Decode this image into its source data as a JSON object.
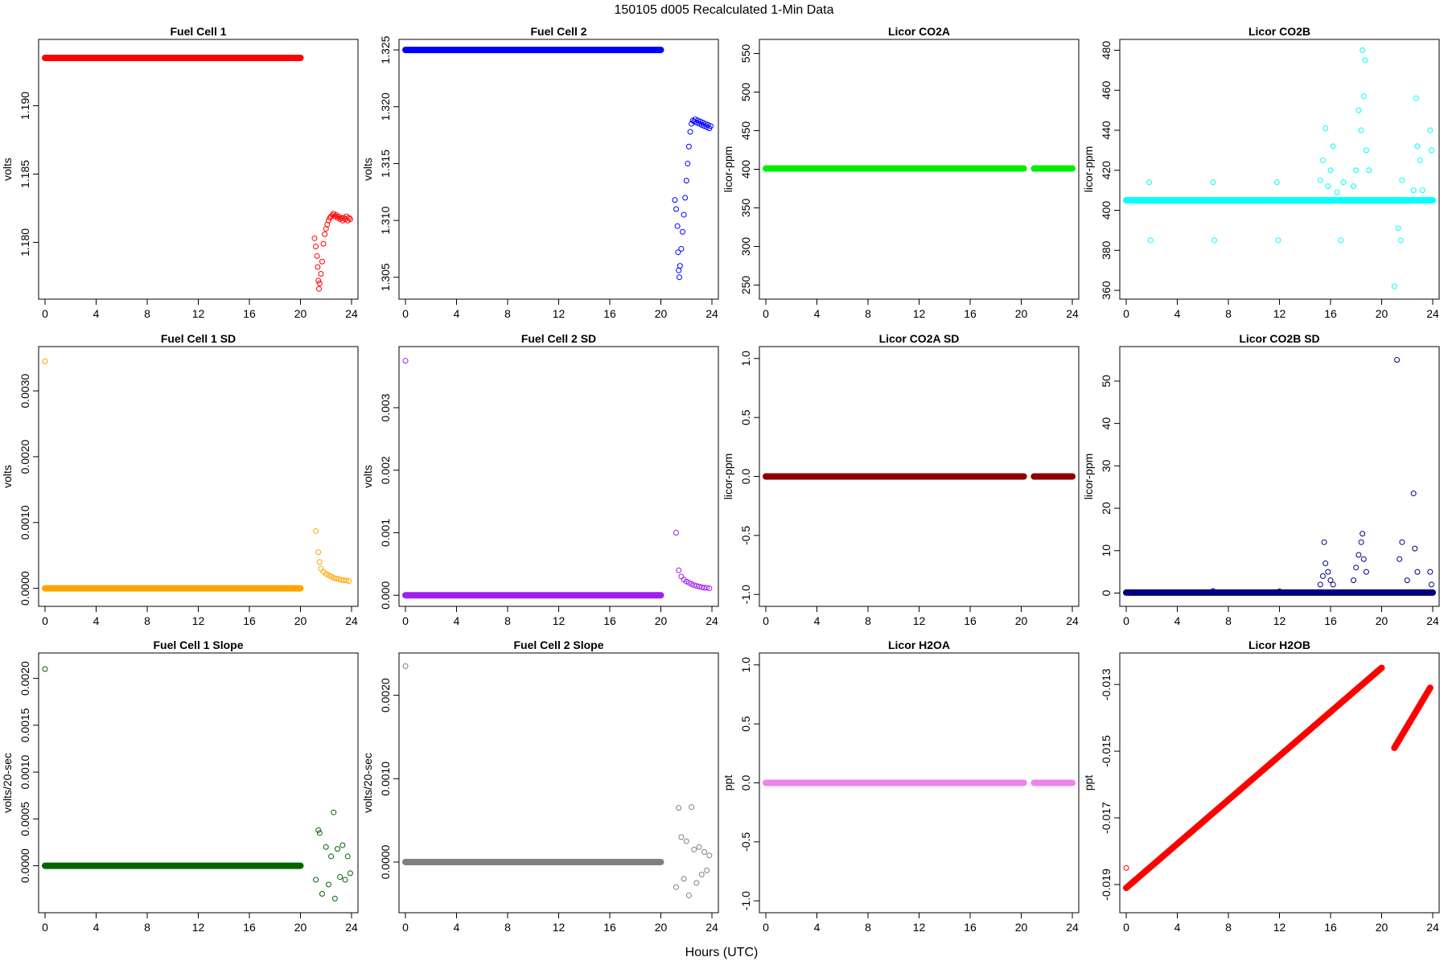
{
  "figure": {
    "title": "150105   d005   Recalculated 1-Min Data",
    "xlabel": "Hours (UTC)"
  },
  "chart_data": [
    {
      "type": "scatter",
      "title": "Fuel Cell 1",
      "ylabel": "volts",
      "color": "#ff0000",
      "xlim": [
        0,
        24
      ],
      "xticks": [
        0,
        4,
        8,
        12,
        16,
        20,
        24
      ],
      "ylim": [
        1.1762,
        1.1945
      ],
      "yticks": [
        1.18,
        1.185,
        1.19
      ],
      "ytick_labels": [
        "1.180",
        "1.185",
        "1.190"
      ],
      "segments": [
        {
          "x0": 0,
          "x1": 20,
          "y0": 1.1935,
          "y1": 1.1935
        }
      ],
      "points": [
        [
          21.1,
          1.1803
        ],
        [
          21.2,
          1.1797
        ],
        [
          21.3,
          1.179
        ],
        [
          21.35,
          1.1782
        ],
        [
          21.4,
          1.1772
        ],
        [
          21.45,
          1.1766
        ],
        [
          21.5,
          1.177
        ],
        [
          21.6,
          1.1777
        ],
        [
          21.7,
          1.1786
        ],
        [
          21.8,
          1.1799
        ],
        [
          21.9,
          1.1806
        ],
        [
          22.0,
          1.181
        ],
        [
          22.1,
          1.1813
        ],
        [
          22.2,
          1.1816
        ],
        [
          22.3,
          1.1818
        ],
        [
          22.4,
          1.1819
        ],
        [
          22.5,
          1.182
        ],
        [
          22.6,
          1.1821
        ],
        [
          22.7,
          1.1819
        ],
        [
          22.8,
          1.182
        ],
        [
          22.9,
          1.1818
        ],
        [
          23.0,
          1.1819
        ],
        [
          23.1,
          1.1817
        ],
        [
          23.2,
          1.1818
        ],
        [
          23.3,
          1.1816
        ],
        [
          23.4,
          1.1818
        ],
        [
          23.5,
          1.1817
        ],
        [
          23.6,
          1.1819
        ],
        [
          23.7,
          1.1816
        ],
        [
          23.8,
          1.1818
        ],
        [
          23.9,
          1.1817
        ]
      ]
    },
    {
      "type": "scatter",
      "title": "Fuel Cell 2",
      "ylabel": "volts",
      "color": "#0000ff",
      "xlim": [
        0,
        24
      ],
      "xticks": [
        0,
        4,
        8,
        12,
        16,
        20,
        24
      ],
      "ylim": [
        1.3035,
        1.3255
      ],
      "yticks": [
        1.305,
        1.31,
        1.315,
        1.32,
        1.325
      ],
      "ytick_labels": [
        "1.305",
        "1.310",
        "1.315",
        "1.320",
        "1.325"
      ],
      "segments": [
        {
          "x0": 0,
          "x1": 20,
          "y0": 1.325,
          "y1": 1.325
        }
      ],
      "points": [
        [
          21.1,
          1.3118
        ],
        [
          21.2,
          1.311
        ],
        [
          21.3,
          1.3095
        ],
        [
          21.35,
          1.3072
        ],
        [
          21.4,
          1.3056
        ],
        [
          21.45,
          1.305
        ],
        [
          21.5,
          1.306
        ],
        [
          21.6,
          1.3075
        ],
        [
          21.7,
          1.309
        ],
        [
          21.8,
          1.3105
        ],
        [
          21.9,
          1.312
        ],
        [
          22.0,
          1.3135
        ],
        [
          22.1,
          1.315
        ],
        [
          22.2,
          1.3165
        ],
        [
          22.3,
          1.3178
        ],
        [
          22.4,
          1.3185
        ],
        [
          22.5,
          1.3188
        ],
        [
          22.6,
          1.3187
        ],
        [
          22.7,
          1.3189
        ],
        [
          22.8,
          1.3186
        ],
        [
          22.9,
          1.3188
        ],
        [
          23.0,
          1.3185
        ],
        [
          23.1,
          1.3187
        ],
        [
          23.2,
          1.3184
        ],
        [
          23.3,
          1.3186
        ],
        [
          23.4,
          1.3183
        ],
        [
          23.5,
          1.3185
        ],
        [
          23.6,
          1.3182
        ],
        [
          23.7,
          1.3184
        ],
        [
          23.8,
          1.3181
        ],
        [
          23.9,
          1.3183
        ]
      ]
    },
    {
      "type": "scatter",
      "title": "Licor CO2A",
      "ylabel": "licor-ppm",
      "color": "#00ee00",
      "xlim": [
        0,
        24
      ],
      "xticks": [
        0,
        4,
        8,
        12,
        16,
        20,
        24
      ],
      "ylim": [
        238,
        562
      ],
      "yticks": [
        250,
        300,
        350,
        400,
        450,
        500,
        550
      ],
      "ytick_labels": [
        "250",
        "300",
        "350",
        "400",
        "450",
        "500",
        "550"
      ],
      "segments": [
        {
          "x0": 0,
          "x1": 20.2,
          "y0": 401,
          "y1": 401
        },
        {
          "x0": 21.0,
          "x1": 24,
          "y0": 401,
          "y1": 401
        }
      ],
      "points": []
    },
    {
      "type": "scatter",
      "title": "Licor CO2B",
      "ylabel": "licor-ppm",
      "color": "#00ffff",
      "xlim": [
        0,
        24
      ],
      "xticks": [
        0,
        4,
        8,
        12,
        16,
        20,
        24
      ],
      "ylim": [
        358,
        483
      ],
      "yticks": [
        360,
        380,
        400,
        420,
        440,
        460,
        480
      ],
      "ytick_labels": [
        "360",
        "380",
        "400",
        "420",
        "440",
        "460",
        "480"
      ],
      "segments": [
        {
          "x0": 0,
          "x1": 24,
          "y0": 405,
          "y1": 405
        }
      ],
      "points": [
        [
          1.8,
          414
        ],
        [
          1.9,
          385
        ],
        [
          6.8,
          414
        ],
        [
          6.9,
          385
        ],
        [
          11.8,
          414
        ],
        [
          11.9,
          385
        ],
        [
          15.2,
          415
        ],
        [
          15.4,
          425
        ],
        [
          15.6,
          441
        ],
        [
          15.8,
          412
        ],
        [
          16.0,
          420
        ],
        [
          16.2,
          432
        ],
        [
          16.5,
          409
        ],
        [
          16.8,
          385
        ],
        [
          17.0,
          414
        ],
        [
          17.8,
          412
        ],
        [
          18.0,
          420
        ],
        [
          18.2,
          450
        ],
        [
          18.4,
          440
        ],
        [
          18.5,
          480
        ],
        [
          18.6,
          457
        ],
        [
          18.7,
          475
        ],
        [
          18.8,
          430
        ],
        [
          19.0,
          420
        ],
        [
          21.0,
          362
        ],
        [
          21.3,
          391
        ],
        [
          21.5,
          385
        ],
        [
          21.6,
          415
        ],
        [
          22.5,
          410
        ],
        [
          22.7,
          456
        ],
        [
          22.8,
          432
        ],
        [
          23.0,
          425
        ],
        [
          23.2,
          410
        ],
        [
          23.8,
          440
        ],
        [
          23.9,
          430
        ]
      ]
    },
    {
      "type": "scatter",
      "title": "Fuel Cell 1 SD",
      "ylabel": "volts",
      "color": "#ffa500",
      "xlim": [
        0,
        24
      ],
      "xticks": [
        0,
        4,
        8,
        12,
        16,
        20,
        24
      ],
      "ylim": [
        -0.0002,
        0.0036
      ],
      "yticks": [
        0.0,
        0.001,
        0.002,
        0.003
      ],
      "ytick_labels": [
        "0.0000",
        "0.0010",
        "0.0020",
        "0.0030"
      ],
      "segments": [
        {
          "x0": 0,
          "x1": 20,
          "y0": 0,
          "y1": 0
        }
      ],
      "points": [
        [
          0,
          0.00345
        ],
        [
          21.2,
          0.00087
        ],
        [
          21.4,
          0.00055
        ],
        [
          21.5,
          0.0004
        ],
        [
          21.6,
          0.0003
        ],
        [
          21.8,
          0.00025
        ],
        [
          22.0,
          0.00022
        ],
        [
          22.2,
          0.0002
        ],
        [
          22.4,
          0.00018
        ],
        [
          22.6,
          0.00016
        ],
        [
          22.8,
          0.00015
        ],
        [
          23.0,
          0.00014
        ],
        [
          23.2,
          0.00013
        ],
        [
          23.4,
          0.00012
        ],
        [
          23.6,
          0.00012
        ],
        [
          23.8,
          0.00011
        ]
      ]
    },
    {
      "type": "scatter",
      "title": "Fuel Cell 2 SD",
      "ylabel": "volts",
      "color": "#a020f0",
      "xlim": [
        0,
        24
      ],
      "xticks": [
        0,
        4,
        8,
        12,
        16,
        20,
        24
      ],
      "ylim": [
        -0.0001,
        0.0039
      ],
      "yticks": [
        0.0,
        0.001,
        0.002,
        0.003
      ],
      "ytick_labels": [
        "0.000",
        "0.001",
        "0.002",
        "0.003"
      ],
      "segments": [
        {
          "x0": 0,
          "x1": 20,
          "y0": 0,
          "y1": 0
        }
      ],
      "points": [
        [
          0,
          0.00375
        ],
        [
          21.2,
          0.001
        ],
        [
          21.4,
          0.0004
        ],
        [
          21.6,
          0.0003
        ],
        [
          21.8,
          0.00025
        ],
        [
          22.0,
          0.00022
        ],
        [
          22.2,
          0.0002
        ],
        [
          22.4,
          0.00018
        ],
        [
          22.6,
          0.00016
        ],
        [
          22.8,
          0.00015
        ],
        [
          23.0,
          0.00014
        ],
        [
          23.2,
          0.00013
        ],
        [
          23.4,
          0.00012
        ],
        [
          23.6,
          0.00012
        ],
        [
          23.8,
          0.00011
        ]
      ]
    },
    {
      "type": "scatter",
      "title": "Licor CO2A SD",
      "ylabel": "licor-ppm",
      "color": "#8b0000",
      "xlim": [
        0,
        24
      ],
      "xticks": [
        0,
        4,
        8,
        12,
        16,
        20,
        24
      ],
      "ylim": [
        -1.06,
        1.06
      ],
      "yticks": [
        -1.0,
        -0.5,
        0.0,
        0.5,
        1.0
      ],
      "ytick_labels": [
        "-1.0",
        "-0.5",
        "0.0",
        "0.5",
        "1.0"
      ],
      "segments": [
        {
          "x0": 0,
          "x1": 20.2,
          "y0": 0,
          "y1": 0
        },
        {
          "x0": 21.0,
          "x1": 24,
          "y0": 0,
          "y1": 0
        }
      ],
      "points": []
    },
    {
      "type": "scatter",
      "title": "Licor CO2B SD",
      "ylabel": "licor-ppm",
      "color": "#000080",
      "xlim": [
        0,
        24
      ],
      "xticks": [
        0,
        4,
        8,
        12,
        16,
        20,
        24
      ],
      "ylim": [
        -2,
        57
      ],
      "yticks": [
        0,
        10,
        20,
        30,
        40,
        50
      ],
      "ytick_labels": [
        "0",
        "10",
        "20",
        "30",
        "40",
        "50"
      ],
      "segments": [
        {
          "x0": 0,
          "x1": 24,
          "y0": 0.1,
          "y1": 0.1
        }
      ],
      "points": [
        [
          6.8,
          0.5
        ],
        [
          12.0,
          0.4
        ],
        [
          15.2,
          2
        ],
        [
          15.4,
          4
        ],
        [
          15.5,
          12
        ],
        [
          15.6,
          7
        ],
        [
          15.8,
          5
        ],
        [
          16.0,
          3
        ],
        [
          16.2,
          2
        ],
        [
          17.8,
          3
        ],
        [
          18.0,
          6
        ],
        [
          18.2,
          9
        ],
        [
          18.4,
          12
        ],
        [
          18.5,
          14
        ],
        [
          18.6,
          8
        ],
        [
          18.8,
          5
        ],
        [
          21.2,
          55
        ],
        [
          21.4,
          8
        ],
        [
          21.6,
          12
        ],
        [
          22.0,
          3
        ],
        [
          22.5,
          23.5
        ],
        [
          22.6,
          10.5
        ],
        [
          22.8,
          5
        ],
        [
          23.8,
          5
        ],
        [
          23.9,
          2
        ]
      ]
    },
    {
      "type": "scatter",
      "title": "Fuel Cell 1 Slope",
      "ylabel": "volts/20-sec",
      "color": "#006400",
      "xlim": [
        0,
        24
      ],
      "xticks": [
        0,
        4,
        8,
        12,
        16,
        20,
        24
      ],
      "ylim": [
        -0.00045,
        0.00222
      ],
      "yticks": [
        0.0,
        0.0005,
        0.001,
        0.0015,
        0.002
      ],
      "ytick_labels": [
        "0.0000",
        "0.0005",
        "0.0010",
        "0.0015",
        "0.0020"
      ],
      "segments": [
        {
          "x0": 0,
          "x1": 20,
          "y0": 0,
          "y1": 0
        }
      ],
      "points": [
        [
          0,
          0.0021
        ],
        [
          21.2,
          -0.00015
        ],
        [
          21.4,
          0.00038
        ],
        [
          21.5,
          0.00035
        ],
        [
          21.7,
          -0.0003
        ],
        [
          22.0,
          0.0002
        ],
        [
          22.2,
          -0.0002
        ],
        [
          22.4,
          0.0001
        ],
        [
          22.6,
          0.00057
        ],
        [
          22.7,
          -0.00035
        ],
        [
          22.9,
          0.00018
        ],
        [
          23.1,
          -0.00012
        ],
        [
          23.3,
          0.00022
        ],
        [
          23.5,
          -0.00015
        ],
        [
          23.7,
          0.0001
        ],
        [
          23.9,
          -8e-05
        ]
      ]
    },
    {
      "type": "scatter",
      "title": "Fuel Cell 2 Slope",
      "ylabel": "volts/20-sec",
      "color": "#808080",
      "xlim": [
        0,
        24
      ],
      "xticks": [
        0,
        4,
        8,
        12,
        16,
        20,
        24
      ],
      "ylim": [
        -0.00055,
        0.00245
      ],
      "yticks": [
        0.0,
        0.001,
        0.002
      ],
      "ytick_labels": [
        "0.0000",
        "0.0010",
        "0.0020"
      ],
      "segments": [
        {
          "x0": 0,
          "x1": 20,
          "y0": 0,
          "y1": 0
        }
      ],
      "points": [
        [
          0,
          0.00235
        ],
        [
          21.2,
          -0.0003
        ],
        [
          21.4,
          0.00065
        ],
        [
          21.6,
          0.0003
        ],
        [
          21.8,
          -0.0002
        ],
        [
          22.0,
          0.00025
        ],
        [
          22.2,
          -0.0004
        ],
        [
          22.4,
          0.00066
        ],
        [
          22.6,
          0.00015
        ],
        [
          22.8,
          -0.00025
        ],
        [
          23.0,
          0.00018
        ],
        [
          23.2,
          -0.00015
        ],
        [
          23.4,
          0.00012
        ],
        [
          23.6,
          -0.0001
        ],
        [
          23.8,
          8e-05
        ]
      ]
    },
    {
      "type": "scatter",
      "title": "Licor H2OA",
      "ylabel": "ppt",
      "color": "#ee82ee",
      "xlim": [
        0,
        24
      ],
      "xticks": [
        0,
        4,
        8,
        12,
        16,
        20,
        24
      ],
      "ylim": [
        -1.06,
        1.06
      ],
      "yticks": [
        -1.0,
        -0.5,
        0.0,
        0.5,
        1.0
      ],
      "ytick_labels": [
        "-1.0",
        "-0.5",
        "0.0",
        "0.5",
        "1.0"
      ],
      "segments": [
        {
          "x0": 0,
          "x1": 20.2,
          "y0": 0,
          "y1": 0
        },
        {
          "x0": 21.0,
          "x1": 24,
          "y0": 0,
          "y1": 0
        }
      ],
      "points": []
    },
    {
      "type": "scatter",
      "title": "Licor H2OB",
      "ylabel": "ppt",
      "color": "#ff0000",
      "xlim": [
        0,
        24
      ],
      "xticks": [
        0,
        4,
        8,
        12,
        16,
        20,
        24
      ],
      "ylim": [
        -0.0197,
        -0.0122
      ],
      "yticks": [
        -0.019,
        -0.017,
        -0.015,
        -0.013
      ],
      "ytick_labels": [
        "-0.019",
        "-0.017",
        "-0.015",
        "-0.013"
      ],
      "segments": [
        {
          "x0": 0,
          "x1": 20,
          "y0": -0.0191,
          "y1": -0.0125
        },
        {
          "x0": 21.0,
          "x1": 23.8,
          "y0": -0.0149,
          "y1": -0.0131
        }
      ],
      "points": [
        [
          0,
          -0.0185
        ]
      ]
    }
  ]
}
